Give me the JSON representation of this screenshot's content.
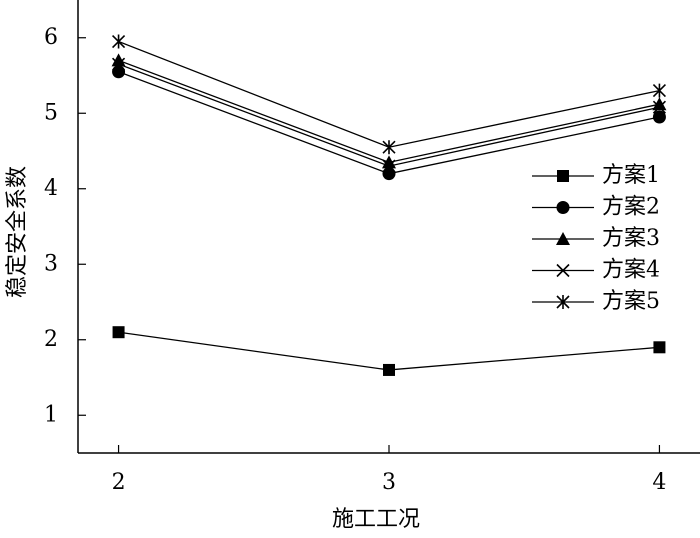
{
  "chart_data": {
    "type": "line",
    "x_label": "施工工况",
    "y_label": "稳定安全系数",
    "x": [
      2,
      3,
      4
    ],
    "xlim": [
      1.85,
      4.15
    ],
    "xticks": [
      2,
      3,
      4
    ],
    "ylim": [
      0.5,
      6.5
    ],
    "yticks": [
      1,
      2,
      3,
      4,
      5,
      6
    ],
    "legend": "right",
    "series": [
      {
        "name": "方案1",
        "color": "#000000",
        "marker": "square",
        "values": [
          2.1,
          1.6,
          1.9
        ]
      },
      {
        "name": "方案2",
        "color": "#000000",
        "marker": "circle",
        "values": [
          5.55,
          4.2,
          4.95
        ]
      },
      {
        "name": "方案3",
        "color": "#000000",
        "marker": "triangle",
        "values": [
          5.7,
          4.35,
          5.12
        ]
      },
      {
        "name": "方案4",
        "color": "#000000",
        "marker": "x",
        "values": [
          5.65,
          4.3,
          5.08
        ]
      },
      {
        "name": "方案5",
        "color": "#000000",
        "marker": "asterisk",
        "values": [
          5.95,
          4.55,
          5.3
        ]
      }
    ]
  }
}
